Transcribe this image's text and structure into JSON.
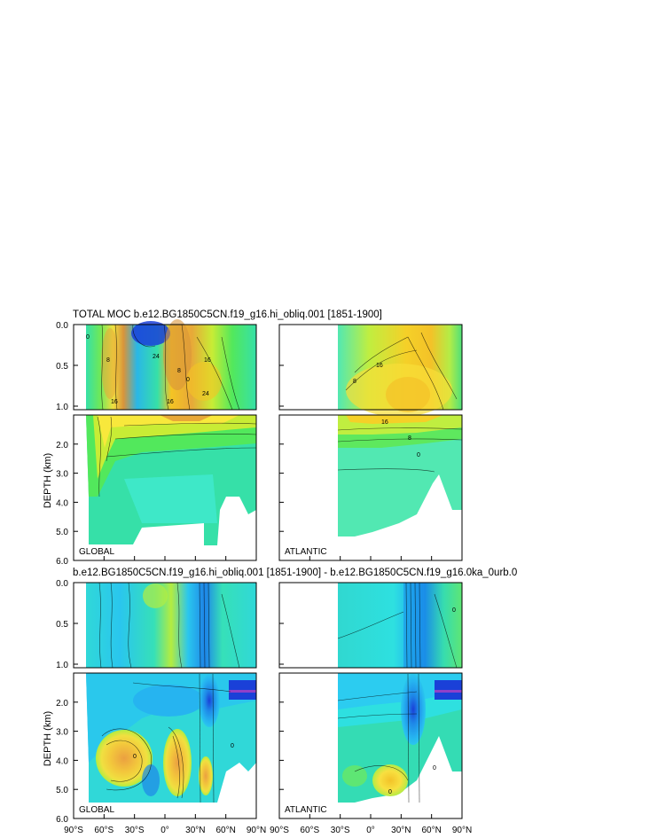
{
  "chart_data": {
    "type": "heatmap",
    "top_title": "TOTAL MOC b.e12.BG1850C5CN.f19_g16.hi_obliq.001 [1851-1900]",
    "bottom_title": "b.e12.BG1850C5CN.f19_g16.hi_obliq.001 [1851-1900] - b.e12.BG1850C5CN.f19_g16.0ka_0urb.0",
    "ylabel": "DEPTH (km)",
    "upper_depth_ticks": [
      "0.0",
      "0.5",
      "1.0"
    ],
    "lower_depth_ticks": [
      "2.0",
      "3.0",
      "4.0",
      "5.0",
      "6.0"
    ],
    "lat_ticks": [
      "90°S",
      "60°S",
      "30°S",
      "0°",
      "30°N",
      "60°N",
      "90°N"
    ],
    "lat_values": [
      -90,
      -60,
      -30,
      0,
      30,
      60,
      90
    ],
    "region_labels": {
      "global": "GLOBAL",
      "atlantic": "ATLANTIC"
    },
    "contour_labels_top_global": [
      "0",
      "8",
      "16",
      "24",
      "16",
      "8",
      "0",
      "16",
      "24"
    ],
    "contour_labels_top_atlantic": [
      "16",
      "8",
      "16",
      "8",
      "0"
    ],
    "contour_labels_diff": [
      "0",
      "0",
      "0",
      "0",
      "0"
    ],
    "colors": {
      "top_global": [
        "#2ab7e6",
        "#36e0a8",
        "#52e85c",
        "#c8ec35",
        "#f8e83c",
        "#f4c424",
        "#e8a838",
        "#d9943a",
        "#c8e72e",
        "#44e070",
        "#36e0a8"
      ],
      "top_atlantic": [
        "#52e8b2",
        "#5ee85e",
        "#c0ee40",
        "#f0e440",
        "#f8de38",
        "#f5d028",
        "#f3c228",
        "#b4ec46",
        "#4ee07a"
      ],
      "bottom_global": [
        "#36e0b8",
        "#30d8d8",
        "#2ac6ee",
        "#26b4f0",
        "#1e88e8",
        "#2ce0c8",
        "#b4ec40",
        "#f0e040",
        "#f3c83c",
        "#eba040",
        "#3cd8d0"
      ],
      "bottom_atlantic": [
        "#34dcb4",
        "#2ee0e0",
        "#2cccf0",
        "#22b6f0",
        "#1a8ce8",
        "#28d6e6",
        "#36dcb0",
        "#5ee674",
        "#98e84c"
      ]
    }
  }
}
